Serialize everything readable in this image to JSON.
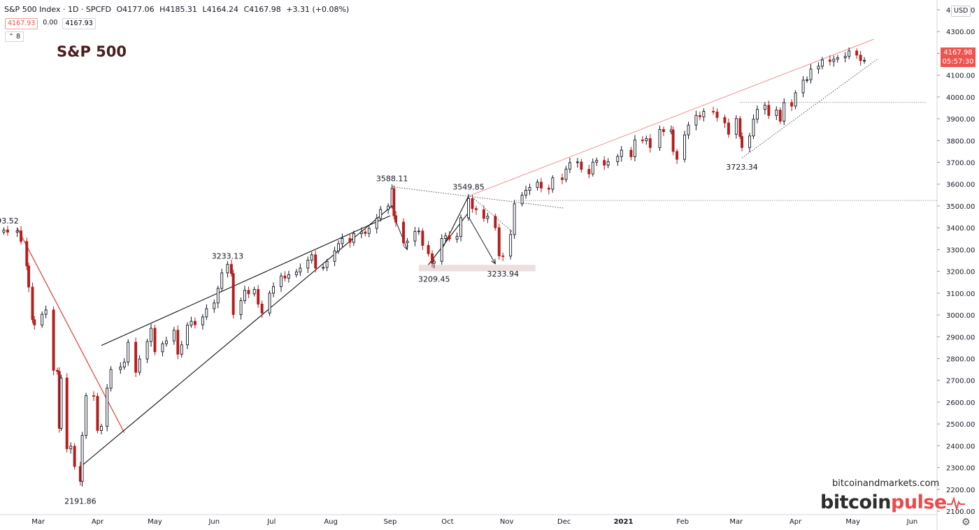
{
  "header": {
    "symbol": "S&P 500 Index · 1D · SPCFD",
    "ohlc": {
      "open": "O4177.06",
      "high": "H4185.31",
      "low": "L4164.24",
      "close": "C4167.98",
      "change": "+3.31 (+0.08%)"
    }
  },
  "badges": {
    "bid": "4167.93",
    "spread": "0.00",
    "ask": "4167.93"
  },
  "indicator_count": "8",
  "title": "S&P 500",
  "currency": "USD",
  "last_price": {
    "value": "4167.98",
    "countdown": "05:57:30"
  },
  "watermark": {
    "site": "bitcoinandmarkets.com",
    "brand_a": "bitcoin",
    "brand_b": "pulse"
  },
  "colors": {
    "up": "#131722",
    "down": "#b71c1c",
    "axis_text": "#131722",
    "trend_red": "#e53935",
    "trend_pink": "#e57373",
    "price_tag": "#ef5350"
  },
  "chart_data": {
    "type": "candlestick",
    "x_range": [
      "2020-02-10",
      "2021-06-14"
    ],
    "ylim": [
      2100,
      4400
    ],
    "y_ticks": [
      2100,
      2200,
      2300,
      2400,
      2500,
      2600,
      2700,
      2800,
      2900,
      3000,
      3100,
      3200,
      3300,
      3400,
      3500,
      3600,
      3700,
      3800,
      3900,
      4000,
      4100,
      4200,
      4300,
      4400
    ],
    "y_tick_labels": [
      "2100.00",
      "2200.00",
      "2300.00",
      "2400.00",
      "2500.00",
      "2600.00",
      "2700.00",
      "2800.00",
      "2900.00",
      "3000.00",
      "3100.00",
      "3200.00",
      "3300.00",
      "3400.00",
      "3500.00",
      "3600.00",
      "3700.00",
      "3800.00",
      "3900.00",
      "4000.00",
      "4100.00",
      "4200.00",
      "4300.00",
      "4400.00"
    ],
    "x_ticks": [
      {
        "date": "2020-03-01",
        "label": "Mar"
      },
      {
        "date": "2020-04-01",
        "label": "Apr"
      },
      {
        "date": "2020-05-01",
        "label": "May"
      },
      {
        "date": "2020-06-01",
        "label": "Jun"
      },
      {
        "date": "2020-07-01",
        "label": "Jul"
      },
      {
        "date": "2020-08-01",
        "label": "Aug"
      },
      {
        "date": "2020-09-01",
        "label": "Sep"
      },
      {
        "date": "2020-10-01",
        "label": "Oct"
      },
      {
        "date": "2020-11-01",
        "label": "Nov"
      },
      {
        "date": "2020-12-01",
        "label": "Dec"
      },
      {
        "date": "2021-01-01",
        "label": "2021",
        "bold": true
      },
      {
        "date": "2021-02-01",
        "label": "Feb"
      },
      {
        "date": "2021-03-01",
        "label": "Mar"
      },
      {
        "date": "2021-04-01",
        "label": "Apr"
      },
      {
        "date": "2021-05-01",
        "label": "May"
      },
      {
        "date": "2021-06-01",
        "label": "Jun"
      }
    ],
    "closes": [
      [
        "2020-02-12",
        3390
      ],
      [
        "2020-02-14",
        3380
      ],
      [
        "2020-02-19",
        3386
      ],
      [
        "2020-02-21",
        3337
      ],
      [
        "2020-02-24",
        3225
      ],
      [
        "2020-02-25",
        3128
      ],
      [
        "2020-02-27",
        2978
      ],
      [
        "2020-02-28",
        2954
      ],
      [
        "2020-03-03",
        3003
      ],
      [
        "2020-03-05",
        3023
      ],
      [
        "2020-03-09",
        2746
      ],
      [
        "2020-03-11",
        2741
      ],
      [
        "2020-03-12",
        2480
      ],
      [
        "2020-03-13",
        2711
      ],
      [
        "2020-03-16",
        2386
      ],
      [
        "2020-03-18",
        2398
      ],
      [
        "2020-03-20",
        2305
      ],
      [
        "2020-03-23",
        2237
      ],
      [
        "2020-03-24",
        2447
      ],
      [
        "2020-03-26",
        2630
      ],
      [
        "2020-03-30",
        2627
      ],
      [
        "2020-04-01",
        2470
      ],
      [
        "2020-04-03",
        2489
      ],
      [
        "2020-04-06",
        2664
      ],
      [
        "2020-04-08",
        2750
      ],
      [
        "2020-04-13",
        2761
      ],
      [
        "2020-04-15",
        2784
      ],
      [
        "2020-04-17",
        2875
      ],
      [
        "2020-04-21",
        2737
      ],
      [
        "2020-04-23",
        2798
      ],
      [
        "2020-04-27",
        2878
      ],
      [
        "2020-04-29",
        2939
      ],
      [
        "2020-05-01",
        2831
      ],
      [
        "2020-05-05",
        2868
      ],
      [
        "2020-05-07",
        2881
      ],
      [
        "2020-05-11",
        2930
      ],
      [
        "2020-05-13",
        2820
      ],
      [
        "2020-05-15",
        2863
      ],
      [
        "2020-05-18",
        2953
      ],
      [
        "2020-05-20",
        2971
      ],
      [
        "2020-05-22",
        2955
      ],
      [
        "2020-05-26",
        2991
      ],
      [
        "2020-05-28",
        3029
      ],
      [
        "2020-06-01",
        3055
      ],
      [
        "2020-06-03",
        3122
      ],
      [
        "2020-06-05",
        3193
      ],
      [
        "2020-06-08",
        3232
      ],
      [
        "2020-06-10",
        3190
      ],
      [
        "2020-06-11",
        3002
      ],
      [
        "2020-06-15",
        3066
      ],
      [
        "2020-06-17",
        3113
      ],
      [
        "2020-06-19",
        3097
      ],
      [
        "2020-06-22",
        3117
      ],
      [
        "2020-06-24",
        3050
      ],
      [
        "2020-06-26",
        3009
      ],
      [
        "2020-06-30",
        3100
      ],
      [
        "2020-07-02",
        3130
      ],
      [
        "2020-07-06",
        3179
      ],
      [
        "2020-07-08",
        3169
      ],
      [
        "2020-07-10",
        3185
      ],
      [
        "2020-07-14",
        3197
      ],
      [
        "2020-07-16",
        3215
      ],
      [
        "2020-07-20",
        3251
      ],
      [
        "2020-07-22",
        3276
      ],
      [
        "2020-07-24",
        3215
      ],
      [
        "2020-07-28",
        3218
      ],
      [
        "2020-07-30",
        3246
      ],
      [
        "2020-08-03",
        3294
      ],
      [
        "2020-08-05",
        3327
      ],
      [
        "2020-08-07",
        3351
      ],
      [
        "2020-08-11",
        3333
      ],
      [
        "2020-08-13",
        3373
      ],
      [
        "2020-08-17",
        3381
      ],
      [
        "2020-08-19",
        3374
      ],
      [
        "2020-08-21",
        3397
      ],
      [
        "2020-08-25",
        3443
      ],
      [
        "2020-08-27",
        3484
      ],
      [
        "2020-08-31",
        3500
      ],
      [
        "2020-09-02",
        3580
      ],
      [
        "2020-09-03",
        3455
      ],
      [
        "2020-09-04",
        3426
      ],
      [
        "2020-09-08",
        3331
      ],
      [
        "2020-09-10",
        3339
      ],
      [
        "2020-09-14",
        3383
      ],
      [
        "2020-09-16",
        3385
      ],
      [
        "2020-09-18",
        3319
      ],
      [
        "2020-09-21",
        3281
      ],
      [
        "2020-09-23",
        3237
      ],
      [
        "2020-09-24",
        3246
      ],
      [
        "2020-09-28",
        3351
      ],
      [
        "2020-09-30",
        3363
      ],
      [
        "2020-10-02",
        3348
      ],
      [
        "2020-10-06",
        3360
      ],
      [
        "2020-10-08",
        3446
      ],
      [
        "2020-10-12",
        3534
      ],
      [
        "2020-10-14",
        3488
      ],
      [
        "2020-10-16",
        3483
      ],
      [
        "2020-10-20",
        3443
      ],
      [
        "2020-10-22",
        3453
      ],
      [
        "2020-10-26",
        3400
      ],
      [
        "2020-10-28",
        3271
      ],
      [
        "2020-10-30",
        3270
      ],
      [
        "2020-11-03",
        3369
      ],
      [
        "2020-11-05",
        3510
      ],
      [
        "2020-11-09",
        3550
      ],
      [
        "2020-11-11",
        3572
      ],
      [
        "2020-11-13",
        3585
      ],
      [
        "2020-11-17",
        3609
      ],
      [
        "2020-11-19",
        3582
      ],
      [
        "2020-11-23",
        3577
      ],
      [
        "2020-11-25",
        3629
      ],
      [
        "2020-11-30",
        3621
      ],
      [
        "2020-12-02",
        3669
      ],
      [
        "2020-12-04",
        3699
      ],
      [
        "2020-12-08",
        3702
      ],
      [
        "2020-12-10",
        3668
      ],
      [
        "2020-12-14",
        3647
      ],
      [
        "2020-12-16",
        3701
      ],
      [
        "2020-12-18",
        3709
      ],
      [
        "2020-12-22",
        3687
      ],
      [
        "2020-12-24",
        3703
      ],
      [
        "2020-12-29",
        3727
      ],
      [
        "2020-12-31",
        3756
      ],
      [
        "2021-01-05",
        3726
      ],
      [
        "2021-01-07",
        3803
      ],
      [
        "2021-01-11",
        3799
      ],
      [
        "2021-01-13",
        3809
      ],
      [
        "2021-01-15",
        3768
      ],
      [
        "2021-01-20",
        3851
      ],
      [
        "2021-01-22",
        3841
      ],
      [
        "2021-01-26",
        3849
      ],
      [
        "2021-01-27",
        3750
      ],
      [
        "2021-01-29",
        3714
      ],
      [
        "2021-02-02",
        3826
      ],
      [
        "2021-02-04",
        3871
      ],
      [
        "2021-02-08",
        3915
      ],
      [
        "2021-02-10",
        3909
      ],
      [
        "2021-02-12",
        3934
      ],
      [
        "2021-02-17",
        3931
      ],
      [
        "2021-02-19",
        3906
      ],
      [
        "2021-02-23",
        3881
      ],
      [
        "2021-02-25",
        3829
      ],
      [
        "2021-03-01",
        3901
      ],
      [
        "2021-03-03",
        3819
      ],
      [
        "2021-03-04",
        3768
      ],
      [
        "2021-03-08",
        3821
      ],
      [
        "2021-03-10",
        3898
      ],
      [
        "2021-03-12",
        3943
      ],
      [
        "2021-03-16",
        3962
      ],
      [
        "2021-03-18",
        3915
      ],
      [
        "2021-03-22",
        3940
      ],
      [
        "2021-03-24",
        3889
      ],
      [
        "2021-03-26",
        3974
      ],
      [
        "2021-03-30",
        3958
      ],
      [
        "2021-04-01",
        4019
      ],
      [
        "2021-04-05",
        4077
      ],
      [
        "2021-04-07",
        4079
      ],
      [
        "2021-04-09",
        4128
      ],
      [
        "2021-04-13",
        4141
      ],
      [
        "2021-04-15",
        4170
      ],
      [
        "2021-04-19",
        4163
      ],
      [
        "2021-04-21",
        4173
      ],
      [
        "2021-04-23",
        4180
      ],
      [
        "2021-04-27",
        4186
      ],
      [
        "2021-04-29",
        4211
      ],
      [
        "2021-05-03",
        4192
      ],
      [
        "2021-05-05",
        4167
      ],
      [
        "2021-05-07",
        4168
      ]
    ],
    "annotations": [
      {
        "label": "93.52",
        "date": "2020-02-14",
        "value": 3393.52,
        "pos": "above"
      },
      {
        "label": "2191.86",
        "date": "2020-03-23",
        "value": 2191.86,
        "pos": "below"
      },
      {
        "label": "3233.13",
        "date": "2020-06-08",
        "value": 3233.13,
        "pos": "above"
      },
      {
        "label": "3588.11",
        "date": "2020-09-02",
        "value": 3588.11,
        "pos": "above"
      },
      {
        "label": "3209.45",
        "date": "2020-09-24",
        "value": 3209.45,
        "pos": "below"
      },
      {
        "label": "3549.85",
        "date": "2020-10-12",
        "value": 3549.85,
        "pos": "above"
      },
      {
        "label": "3233.94",
        "date": "2020-10-30",
        "value": 3233.94,
        "pos": "below"
      },
      {
        "label": "3723.34",
        "date": "2021-03-04",
        "value": 3723.34,
        "pos": "below"
      }
    ],
    "trendlines": [
      {
        "from": [
          "2020-02-19",
          3400
        ],
        "to": [
          "2020-04-15",
          2460
        ],
        "style": "red"
      },
      {
        "from": [
          "2020-03-24",
          2310
        ],
        "to": [
          "2020-09-02",
          3500
        ],
        "style": "solid"
      },
      {
        "from": [
          "2020-04-03",
          2860
        ],
        "to": [
          "2020-09-01",
          3455
        ],
        "style": "solid"
      },
      {
        "from": [
          "2020-09-21",
          3230
        ],
        "to": [
          "2020-10-12",
          3470
        ],
        "style": "solid"
      },
      {
        "from": [
          "2020-09-28",
          3300
        ],
        "to": [
          "2020-10-12",
          3545
        ],
        "style": "solid"
      },
      {
        "from": [
          "2020-10-12",
          3545
        ],
        "to": [
          "2021-05-12",
          4265
        ],
        "style": "pink"
      },
      {
        "from": [
          "2020-09-02",
          3588
        ],
        "to": [
          "2020-12-01",
          3490
        ],
        "style": "dotted"
      },
      {
        "from": [
          "2020-10-14",
          3540
        ],
        "to": [
          "2020-11-06",
          3365
        ],
        "style": "dotted"
      },
      {
        "from": [
          "2021-03-04",
          3720
        ],
        "to": [
          "2021-05-14",
          4175
        ],
        "style": "dotted"
      },
      {
        "from": [
          "2020-11-06",
          3525
        ],
        "to": [
          "2021-06-14",
          3525
        ],
        "style": "hdotted"
      },
      {
        "from": [
          "2021-03-03",
          3975
        ],
        "to": [
          "2021-06-08",
          3975
        ],
        "style": "hdotted"
      }
    ],
    "arrows": [
      {
        "from": [
          "2020-09-04",
          3430
        ],
        "to": [
          "2020-09-10",
          3300
        ]
      },
      {
        "from": [
          "2020-10-12",
          3450
        ],
        "to": [
          "2020-10-26",
          3235
        ]
      }
    ],
    "support_zone": {
      "from": "2020-09-16",
      "to": "2020-11-16",
      "low": 3200,
      "high": 3230
    }
  }
}
